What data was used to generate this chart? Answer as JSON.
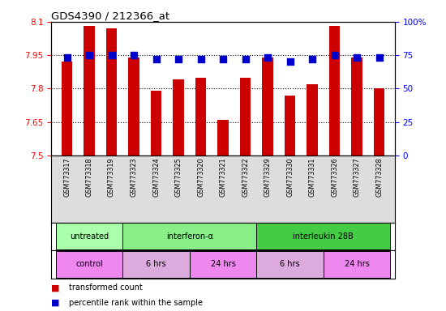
{
  "title": "GDS4390 / 212366_at",
  "samples": [
    "GSM773317",
    "GSM773318",
    "GSM773319",
    "GSM773323",
    "GSM773324",
    "GSM773325",
    "GSM773320",
    "GSM773321",
    "GSM773322",
    "GSM773329",
    "GSM773330",
    "GSM773331",
    "GSM773326",
    "GSM773327",
    "GSM773328"
  ],
  "red_values": [
    7.92,
    8.08,
    8.07,
    7.94,
    7.79,
    7.84,
    7.85,
    7.66,
    7.85,
    7.94,
    7.77,
    7.82,
    8.08,
    7.94,
    7.8
  ],
  "blue_values": [
    73,
    75,
    75,
    75,
    72,
    72,
    72,
    72,
    72,
    73,
    70,
    72,
    75,
    73,
    73
  ],
  "ylim_left": [
    7.5,
    8.1
  ],
  "ylim_right": [
    0,
    100
  ],
  "yticks_left": [
    7.5,
    7.65,
    7.8,
    7.95,
    8.1
  ],
  "yticks_right": [
    0,
    25,
    50,
    75,
    100
  ],
  "hlines": [
    7.65,
    7.8,
    7.95
  ],
  "agent_groups": [
    {
      "label": "untreated",
      "start": 0,
      "end": 3,
      "color": "#aaffaa"
    },
    {
      "label": "interferon-α",
      "start": 3,
      "end": 9,
      "color": "#88ee88"
    },
    {
      "label": "interleukin 28B",
      "start": 9,
      "end": 15,
      "color": "#44cc44"
    }
  ],
  "time_groups": [
    {
      "label": "control",
      "start": 0,
      "end": 3,
      "color": "#ee88ee"
    },
    {
      "label": "6 hrs",
      "start": 3,
      "end": 6,
      "color": "#ddaadd"
    },
    {
      "label": "24 hrs",
      "start": 6,
      "end": 9,
      "color": "#ee88ee"
    },
    {
      "label": "6 hrs",
      "start": 9,
      "end": 12,
      "color": "#ddaadd"
    },
    {
      "label": "24 hrs",
      "start": 12,
      "end": 15,
      "color": "#ee88ee"
    }
  ],
  "bar_color": "#cc0000",
  "dot_color": "#0000cc",
  "bar_width": 0.5,
  "dot_size": 30,
  "legend_items": [
    {
      "color": "#cc0000",
      "label": "transformed count"
    },
    {
      "color": "#0000cc",
      "label": "percentile rank within the sample"
    }
  ]
}
